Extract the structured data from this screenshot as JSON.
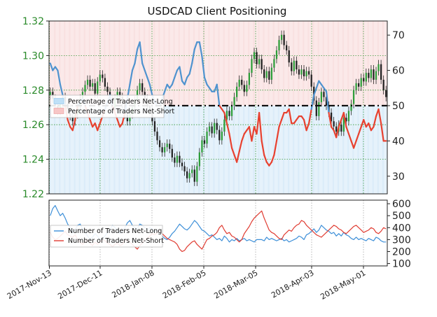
{
  "chart_data": [
    {
      "type": "candlestick",
      "title": "USDCAD Client Positioning",
      "left_axis": {
        "ticks": [
          "1.22",
          "1.24",
          "1.26",
          "1.28",
          "1.30",
          "1.32"
        ],
        "ylim": [
          1.22,
          1.32
        ]
      },
      "right_axis": {
        "ticks": [
          "30",
          "40",
          "50",
          "60",
          "70"
        ],
        "ylim": [
          25,
          74
        ]
      },
      "reference_line": 50,
      "legend": [
        "Percentage of Traders Net-Long",
        "Percentage of Traders Net-Short"
      ],
      "legend_position": "upper-left",
      "price_close": [
        1.279,
        1.275,
        1.271,
        1.268,
        1.273,
        1.276,
        1.272,
        1.269,
        1.265,
        1.262,
        1.266,
        1.271,
        1.275,
        1.279,
        1.283,
        1.286,
        1.282,
        1.284,
        1.278,
        1.285,
        1.289,
        1.287,
        1.282,
        1.279,
        1.274,
        1.27,
        1.275,
        1.279,
        1.276,
        1.272,
        1.266,
        1.262,
        1.266,
        1.27,
        1.274,
        1.28,
        1.284,
        1.279,
        1.275,
        1.271,
        1.268,
        1.262,
        1.256,
        1.251,
        1.247,
        1.244,
        1.247,
        1.249,
        1.246,
        1.241,
        1.238,
        1.242,
        1.238,
        1.236,
        1.233,
        1.229,
        1.232,
        1.234,
        1.227,
        1.236,
        1.244,
        1.251,
        1.249,
        1.256,
        1.259,
        1.255,
        1.261,
        1.257,
        1.251,
        1.256,
        1.263,
        1.268,
        1.265,
        1.271,
        1.276,
        1.282,
        1.286,
        1.283,
        1.279,
        1.283,
        1.29,
        1.298,
        1.302,
        1.295,
        1.298,
        1.292,
        1.287,
        1.291,
        1.286,
        1.293,
        1.298,
        1.303,
        1.309,
        1.312,
        1.306,
        1.303,
        1.296,
        1.291,
        1.297,
        1.292,
        1.289,
        1.292,
        1.288,
        1.291,
        1.289,
        1.282,
        1.274,
        1.265,
        1.273,
        1.279,
        1.276,
        1.271,
        1.267,
        1.262,
        1.259,
        1.256,
        1.26,
        1.256,
        1.264,
        1.262,
        1.268,
        1.272,
        1.28,
        1.284,
        1.282,
        1.287,
        1.285,
        1.29,
        1.287,
        1.292,
        1.286,
        1.291,
        1.295,
        1.286,
        1.28,
        1.276
      ],
      "percent_net_long": [
        62,
        60,
        61,
        60,
        56,
        53,
        50,
        46,
        44,
        43,
        46,
        50,
        51,
        52,
        50,
        48,
        46,
        44,
        45,
        43,
        45,
        47,
        49,
        51,
        53,
        50,
        48,
        46,
        44,
        45,
        48,
        52,
        56,
        60,
        62,
        66,
        68,
        62,
        60,
        58,
        56,
        53,
        51,
        50,
        50,
        52,
        54,
        56,
        55,
        56,
        58,
        60,
        61,
        57,
        56,
        58,
        59,
        62,
        66,
        68,
        68,
        64,
        58,
        56,
        55,
        54,
        54,
        56,
        50,
        49,
        48,
        45,
        42,
        38,
        36,
        34,
        37,
        40,
        42,
        43,
        44,
        40,
        44,
        42,
        48,
        40,
        36,
        34,
        33,
        34,
        36,
        40,
        44,
        46,
        48,
        48,
        49,
        45,
        45,
        46,
        47,
        47,
        46,
        43,
        45,
        49,
        53,
        55,
        57,
        56,
        55,
        54,
        48,
        44,
        43,
        41,
        44,
        46,
        48,
        44,
        42,
        40,
        38,
        40,
        42,
        44,
        46,
        44,
        45,
        43,
        44,
        47,
        49,
        45,
        40,
        40
      ],
      "percent_net_short": [
        38,
        40,
        39,
        40,
        44,
        47,
        50,
        54,
        56,
        57,
        54,
        50,
        49,
        48,
        50,
        52,
        54,
        56,
        55,
        57,
        55,
        53,
        51,
        49,
        47,
        50,
        52,
        54,
        56,
        55,
        52,
        48,
        44,
        40,
        38,
        34,
        32,
        38,
        40,
        42,
        44,
        47,
        49,
        50,
        50,
        48,
        46,
        44,
        45,
        44,
        42,
        40,
        39,
        43,
        44,
        42,
        41,
        38,
        34,
        32,
        32,
        36,
        42,
        44,
        45,
        46,
        46,
        44,
        50,
        51,
        52,
        55,
        58,
        62,
        64,
        66,
        63,
        60,
        58,
        57,
        56,
        60,
        56,
        58,
        52,
        60,
        64,
        66,
        67,
        66,
        64,
        60,
        56,
        54,
        52,
        52,
        51,
        55,
        55,
        54,
        53,
        53,
        54,
        57,
        55,
        51,
        47,
        45,
        43,
        44,
        45,
        46,
        52,
        56,
        57,
        59,
        56,
        54,
        52,
        56,
        58,
        60,
        62,
        60,
        58,
        56,
        54,
        56,
        55,
        57,
        56,
        53,
        51,
        55,
        60,
        60
      ]
    },
    {
      "type": "line",
      "y_axis": {
        "ticks": [
          "100",
          "200",
          "300",
          "400",
          "500",
          "600"
        ],
        "ylim": [
          80,
          630
        ]
      },
      "x_ticks": [
        "2017-Nov-13",
        "2017-Dec-11",
        "2018-Jan-08",
        "2018-Feb-05",
        "2018-Mar-05",
        "2018-Apr-03",
        "2018-May-01"
      ],
      "legend_position": "upper-left",
      "series": [
        {
          "name": "Number of Traders Net-Long",
          "color": "#3d8fd8",
          "values": [
            500,
            560,
            585,
            540,
            500,
            520,
            480,
            430,
            400,
            360,
            380,
            420,
            430,
            390,
            360,
            330,
            300,
            320,
            350,
            330,
            300,
            310,
            330,
            360,
            380,
            420,
            400,
            380,
            350,
            370,
            400,
            440,
            460,
            420,
            400,
            390,
            430,
            420,
            400,
            380,
            400,
            390,
            360,
            380,
            350,
            330,
            310,
            300,
            320,
            350,
            370,
            400,
            430,
            410,
            390,
            380,
            400,
            430,
            460,
            440,
            410,
            380,
            370,
            350,
            330,
            340,
            320,
            300,
            310,
            290,
            330,
            310,
            280,
            300,
            290,
            310,
            290,
            300,
            310,
            290,
            300,
            290,
            280,
            300,
            300,
            300,
            290,
            320,
            300,
            310,
            300,
            290,
            300,
            310,
            290,
            300,
            280,
            290,
            300,
            310,
            330,
            320,
            300,
            340,
            350,
            370,
            390,
            360,
            380,
            420,
            400,
            380,
            370,
            350,
            360,
            330,
            350,
            330,
            360,
            340,
            330,
            310,
            300,
            320,
            300,
            310,
            300,
            290,
            310,
            300,
            290,
            320,
            310,
            290,
            280,
            280
          ]
        },
        {
          "name": "Number of Traders Net-Short",
          "color": "#e03c32",
          "values": [
            360,
            320,
            300,
            310,
            330,
            350,
            370,
            340,
            330,
            320,
            340,
            300,
            280,
            260,
            280,
            300,
            270,
            250,
            280,
            260,
            280,
            300,
            290,
            270,
            260,
            240,
            260,
            270,
            250,
            260,
            300,
            290,
            280,
            260,
            240,
            220,
            250,
            270,
            300,
            310,
            330,
            350,
            340,
            360,
            380,
            350,
            330,
            310,
            300,
            290,
            280,
            260,
            220,
            200,
            210,
            240,
            260,
            280,
            290,
            260,
            240,
            220,
            260,
            300,
            310,
            330,
            340,
            360,
            400,
            420,
            380,
            350,
            360,
            330,
            320,
            300,
            280,
            300,
            350,
            380,
            410,
            450,
            480,
            500,
            520,
            540,
            480,
            430,
            380,
            360,
            350,
            330,
            310,
            300,
            340,
            360,
            380,
            370,
            400,
            420,
            430,
            460,
            450,
            420,
            400,
            380,
            360,
            340,
            330,
            320,
            340,
            360,
            380,
            400,
            420,
            410,
            390,
            380,
            360,
            350,
            370,
            390,
            410,
            420,
            400,
            380,
            360,
            370,
            380,
            400,
            390,
            360,
            350,
            370,
            400,
            390
          ]
        }
      ]
    }
  ]
}
